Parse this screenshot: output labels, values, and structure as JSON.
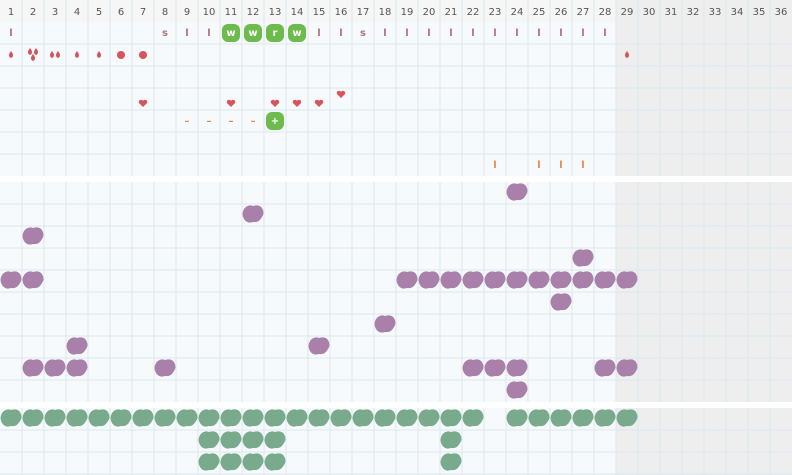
{
  "header": {
    "days": [
      "1",
      "2",
      "3",
      "4",
      "5",
      "6",
      "7",
      "8",
      "9",
      "10",
      "11",
      "12",
      "13",
      "14",
      "15",
      "16",
      "17",
      "18",
      "19",
      "20",
      "21",
      "22",
      "23",
      "24",
      "25",
      "26",
      "27",
      "28",
      "29",
      "30",
      "31",
      "32",
      "33",
      "34",
      "35",
      "36"
    ]
  },
  "rows": {
    "letters": [
      "l",
      null,
      null,
      null,
      null,
      null,
      null,
      "s",
      "l",
      "l",
      null,
      null,
      null,
      null,
      "l",
      "l",
      "s",
      "l",
      "l",
      "l",
      "l",
      "l",
      "l",
      "l",
      "l",
      "l",
      "l",
      "l",
      null,
      null,
      null,
      null,
      null,
      null,
      null,
      null
    ],
    "badges": [
      null,
      null,
      null,
      null,
      null,
      null,
      null,
      null,
      null,
      null,
      "w",
      "w",
      "r",
      "w",
      null,
      null,
      null,
      null,
      null,
      null,
      null,
      null,
      null,
      null,
      null,
      null,
      null,
      null,
      null,
      null,
      null,
      null,
      null,
      null,
      null,
      null
    ],
    "dashes": [
      null,
      null,
      null,
      null,
      null,
      null,
      null,
      null,
      "–",
      "–",
      "–",
      "–",
      null,
      null,
      null,
      null,
      null,
      null,
      null,
      null,
      null,
      null,
      null,
      null,
      null,
      null,
      null,
      null,
      null,
      null,
      null,
      null,
      null,
      null,
      null,
      null
    ],
    "plus": [
      null,
      null,
      null,
      null,
      null,
      null,
      null,
      null,
      null,
      null,
      null,
      null,
      "+",
      null,
      null,
      null,
      null,
      null,
      null,
      null,
      null,
      null,
      null,
      null,
      null,
      null,
      null,
      null,
      null,
      null,
      null,
      null,
      null,
      null,
      null,
      null
    ],
    "spotting": [
      null,
      null,
      null,
      null,
      null,
      null,
      null,
      null,
      null,
      null,
      null,
      null,
      null,
      null,
      null,
      null,
      null,
      null,
      null,
      null,
      null,
      null,
      "l",
      null,
      "l",
      "l",
      "l",
      null,
      null,
      null,
      null,
      null,
      null,
      null,
      null,
      null
    ]
  }
}
